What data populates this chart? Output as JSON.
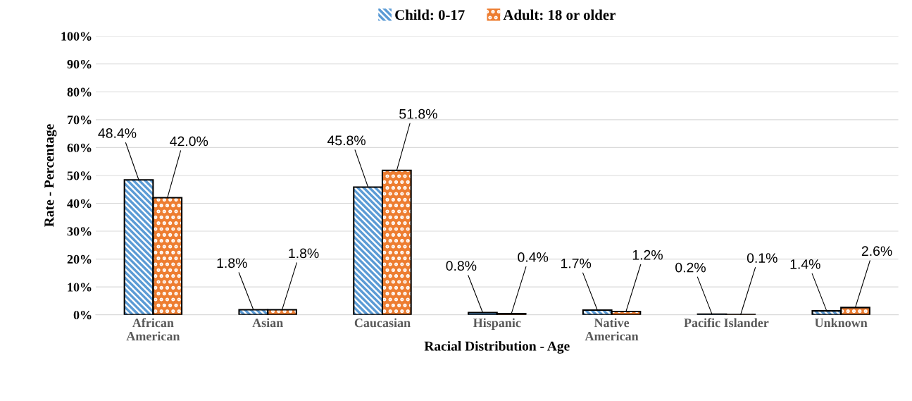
{
  "chart_data": {
    "type": "bar",
    "xlabel": "Racial Distribution - Age",
    "ylabel": "Rate - Percentage",
    "categories": [
      "African American",
      "Asian",
      "Caucasian",
      "Hispanic",
      "Native American",
      "Pacific Islander",
      "Unknown"
    ],
    "series": [
      {
        "name": "Child: 0-17",
        "color": "#5b9bd5",
        "values": [
          48.4,
          1.8,
          45.8,
          0.8,
          1.7,
          0.2,
          1.4
        ],
        "value_labels": [
          "48.4%",
          "1.8%",
          "45.8%",
          "0.8%",
          "1.7%",
          "0.2%",
          "1.4%"
        ]
      },
      {
        "name": "Adult: 18 or older",
        "color": "#ed7d31",
        "values": [
          42.0,
          1.8,
          51.8,
          0.4,
          1.2,
          0.1,
          2.6
        ],
        "value_labels": [
          "42.0%",
          "1.8%",
          "51.8%",
          "0.4%",
          "1.2%",
          "0.1%",
          "2.6%"
        ]
      }
    ],
    "ylim": [
      0,
      100
    ],
    "yticks": [
      {
        "value": 0,
        "label": "0%"
      },
      {
        "value": 10,
        "label": "10%"
      },
      {
        "value": 20,
        "label": "20%"
      },
      {
        "value": 30,
        "label": "30%"
      },
      {
        "value": 40,
        "label": "40%"
      },
      {
        "value": 50,
        "label": "50%"
      },
      {
        "value": 60,
        "label": "60%"
      },
      {
        "value": 70,
        "label": "70%"
      },
      {
        "value": 80,
        "label": "80%"
      },
      {
        "value": 90,
        "label": "90%"
      },
      {
        "value": 100,
        "label": "100%"
      }
    ],
    "grid": "y",
    "legend": "top"
  }
}
